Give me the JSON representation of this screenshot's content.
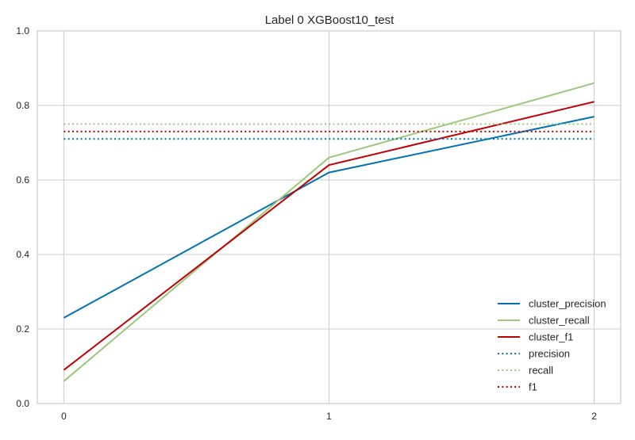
{
  "chart_data": {
    "type": "line",
    "title": "Label 0 XGBoost10_test",
    "xlabel": "",
    "ylabel": "",
    "x": [
      0,
      1,
      2
    ],
    "x_ticks": [
      "0",
      "1",
      "2"
    ],
    "xlim": [
      -0.1,
      2.1
    ],
    "ylim": [
      0.0,
      1.0
    ],
    "y_ticks": [
      "0.0",
      "0.2",
      "0.4",
      "0.6",
      "0.8",
      "1.0"
    ],
    "grid": true,
    "legend_position": "bottom-right",
    "series": [
      {
        "name": "cluster_precision",
        "values": [
          0.23,
          0.62,
          0.77
        ],
        "color": "#0072b2",
        "style": "solid"
      },
      {
        "name": "cluster_recall",
        "values": [
          0.06,
          0.66,
          0.86
        ],
        "color": "#9bc87a",
        "style": "solid"
      },
      {
        "name": "cluster_f1",
        "values": [
          0.09,
          0.64,
          0.81
        ],
        "color": "#c00000",
        "style": "solid"
      },
      {
        "name": "precision",
        "values": [
          0.71,
          0.71,
          0.71
        ],
        "color": "#0072b2",
        "style": "dotted"
      },
      {
        "name": "recall",
        "values": [
          0.75,
          0.75,
          0.75
        ],
        "color": "#9bc87a",
        "style": "dotted"
      },
      {
        "name": "f1",
        "values": [
          0.73,
          0.73,
          0.73
        ],
        "color": "#c00000",
        "style": "dotted"
      }
    ]
  }
}
